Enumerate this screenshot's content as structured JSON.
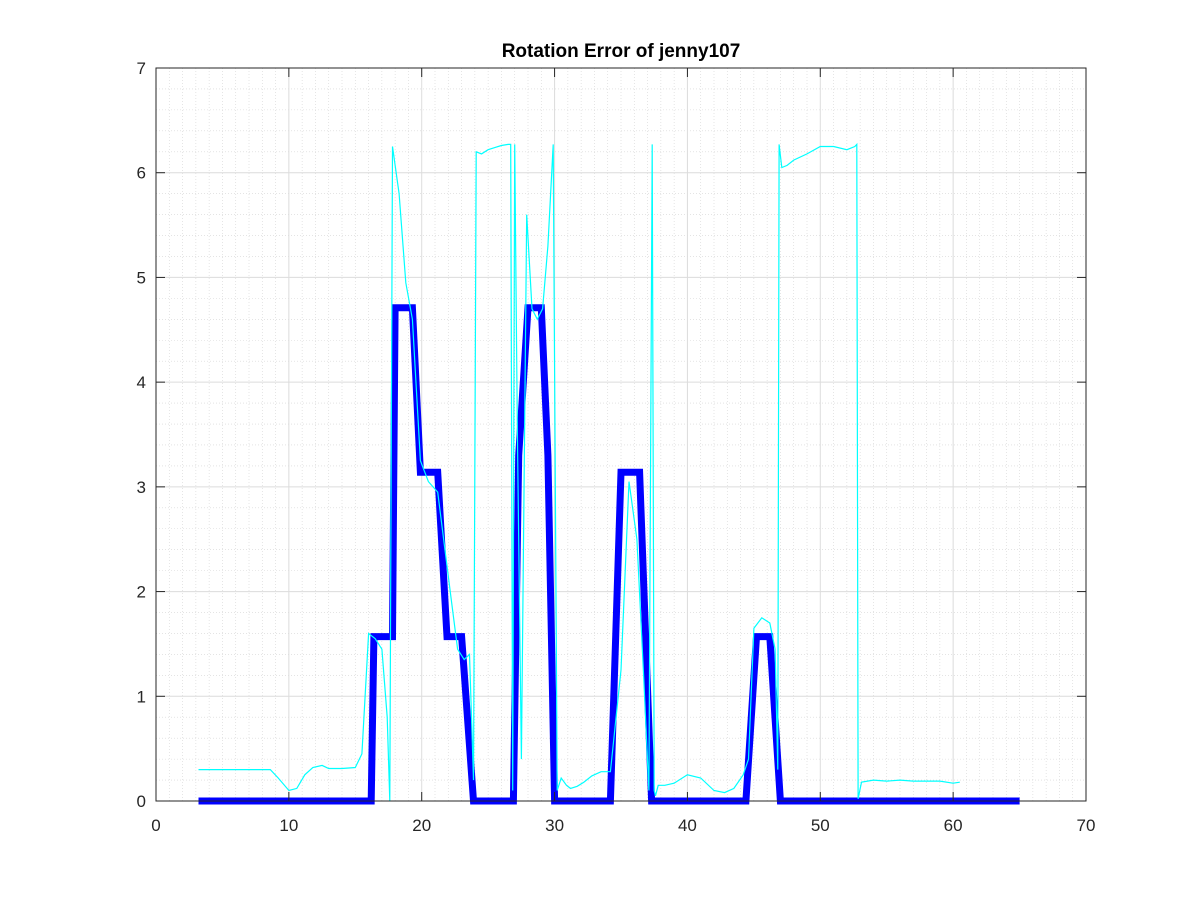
{
  "chart_data": {
    "type": "line",
    "title": "Rotation Error of jenny107",
    "xlabel": "",
    "ylabel": "",
    "xlim": [
      0,
      70
    ],
    "ylim": [
      0,
      7
    ],
    "xticks": [
      0,
      10,
      20,
      30,
      40,
      50,
      60,
      70
    ],
    "yticks": [
      0,
      1,
      2,
      3,
      4,
      5,
      6,
      7
    ],
    "xtick_labels": [
      "0",
      "10",
      "20",
      "30",
      "40",
      "50",
      "60",
      "70"
    ],
    "ytick_labels": [
      "0",
      "1",
      "2",
      "3",
      "4",
      "5",
      "6",
      "7"
    ],
    "grid": true,
    "minor_grid": true,
    "legend": "none",
    "series": [
      {
        "color": "#0000ff",
        "style": "thick markers",
        "x": [
          3.2,
          16.2,
          16.4,
          17.8,
          18.0,
          19.3,
          19.9,
          21.2,
          21.9,
          23.0,
          23.9,
          26.9,
          27.3,
          28.0,
          29.0,
          29.5,
          30.0,
          34.2,
          35.0,
          36.4,
          37.3,
          44.4,
          45.2,
          46.2,
          47.0,
          65.0
        ],
        "y": [
          0,
          0,
          1.57,
          1.57,
          4.71,
          4.71,
          3.14,
          3.14,
          1.57,
          1.57,
          0,
          0,
          3.3,
          4.71,
          4.71,
          3.3,
          0,
          0,
          3.14,
          3.14,
          0,
          0,
          1.57,
          1.57,
          0,
          0
        ]
      },
      {
        "color": "#00ffff",
        "style": "thin line",
        "x": [
          3.2,
          5,
          7,
          8.6,
          9.2,
          10,
          10.6,
          11.2,
          11.8,
          12.5,
          13,
          14,
          15,
          15.5,
          16,
          16.5,
          17,
          17.4,
          17.6,
          17.8,
          18.3,
          18.8,
          19.3,
          19.9,
          20.5,
          21.2,
          21.7,
          22.2,
          22.7,
          23.2,
          23.6,
          23.9,
          24.1,
          24.5,
          25.0,
          25.5,
          26.0,
          26.5,
          26.7,
          26.85,
          27.0,
          27.2,
          27.5,
          27.9,
          28.3,
          28.7,
          29.1,
          29.5,
          29.9,
          30.2,
          30.5,
          30.9,
          31.2,
          31.7,
          32.2,
          32.8,
          33.5,
          34.2,
          35.0,
          35.6,
          36.2,
          36.7,
          37.1,
          37.35,
          37.5,
          37.6,
          37.8,
          38.3,
          39,
          40,
          41,
          42,
          42.8,
          43.5,
          44.2,
          44.6,
          45,
          45.6,
          46.2,
          46.6,
          46.8,
          46.9,
          47.1,
          47.5,
          48,
          49,
          50,
          51,
          52,
          52.6,
          52.75,
          52.85,
          53.1,
          54,
          55,
          56,
          57,
          58,
          59,
          60,
          60.5
        ],
        "y": [
          0.3,
          0.3,
          0.3,
          0.3,
          0.22,
          0.1,
          0.12,
          0.25,
          0.32,
          0.34,
          0.31,
          0.31,
          0.32,
          0.45,
          1.6,
          1.55,
          1.45,
          0.8,
          0.0,
          6.25,
          5.8,
          4.95,
          4.6,
          3.25,
          3.05,
          2.95,
          2.45,
          1.95,
          1.45,
          1.35,
          1.4,
          0.2,
          6.2,
          6.18,
          6.22,
          6.24,
          6.26,
          6.27,
          6.27,
          0.1,
          6.27,
          3.5,
          0.4,
          5.6,
          4.7,
          4.6,
          4.7,
          5.3,
          6.27,
          0.1,
          0.22,
          0.15,
          0.12,
          0.14,
          0.18,
          0.24,
          0.28,
          0.28,
          1.25,
          3.05,
          2.5,
          1.2,
          0.1,
          6.27,
          0.1,
          0.05,
          0.15,
          0.15,
          0.17,
          0.25,
          0.22,
          0.1,
          0.08,
          0.12,
          0.25,
          0.4,
          1.65,
          1.75,
          1.7,
          1.45,
          0.3,
          6.27,
          6.05,
          6.07,
          6.12,
          6.18,
          6.25,
          6.25,
          6.22,
          6.25,
          6.27,
          0.02,
          0.18,
          0.2,
          0.19,
          0.2,
          0.19,
          0.19,
          0.19,
          0.17,
          0.18
        ]
      }
    ]
  }
}
